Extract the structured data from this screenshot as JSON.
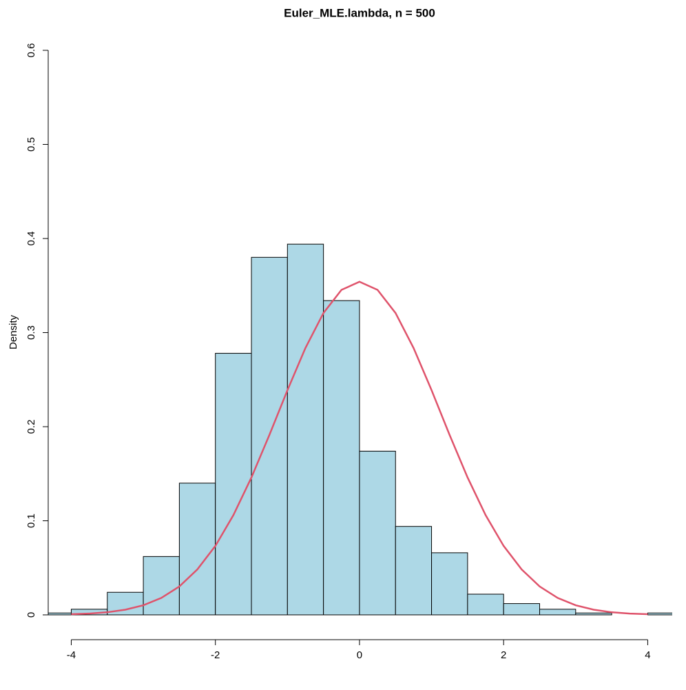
{
  "chart_data": {
    "type": "histogram",
    "title": "Euler_MLE.lambda, n = 500",
    "y_label": "Density",
    "bins": [
      -4.5,
      -4,
      -3.5,
      -3,
      -2.5,
      -2,
      -1.5,
      -1,
      -0.5,
      0,
      0.5,
      1,
      1.5,
      2,
      2.5,
      3,
      3.5,
      4,
      4.5
    ],
    "values": [
      0.002,
      0.006,
      0.024,
      0.062,
      0.14,
      0.278,
      0.38,
      0.394,
      0.334,
      0.174,
      0.094,
      0.066,
      0.022,
      0.012,
      0.006,
      0.002,
      0,
      0.002
    ],
    "color": "#add8e6",
    "curve": {
      "color": "#df536b",
      "x": [
        -4,
        -3.75,
        -3.5,
        -3.25,
        -3,
        -2.75,
        -2.5,
        -2.25,
        -2,
        -1.75,
        -1.5,
        -1.25,
        -1,
        -0.75,
        -0.5,
        -0.25,
        0,
        0.25,
        0.5,
        0.75,
        1,
        1.25,
        1.5,
        1.75,
        2,
        2.25,
        2.5,
        2.75,
        3,
        3.25,
        3.5,
        3.75,
        4
      ],
      "values": [
        0.0007,
        0.0014,
        0.0028,
        0.0055,
        0.0102,
        0.018,
        0.0302,
        0.0483,
        0.0733,
        0.106,
        0.146,
        0.1913,
        0.2388,
        0.2837,
        0.3208,
        0.3454,
        0.354,
        0.3454,
        0.3208,
        0.2837,
        0.2388,
        0.1913,
        0.146,
        0.106,
        0.0733,
        0.0483,
        0.0302,
        0.018,
        0.0102,
        0.0055,
        0.0028,
        0.0014,
        0.0007
      ]
    },
    "xlim": [
      -4.32,
      4.34
    ],
    "xticks": [
      -4,
      -2,
      0,
      2,
      4
    ],
    "ylim": [
      0,
      0.6
    ],
    "yticks": [
      0,
      0.1,
      0.2,
      0.3,
      0.4,
      0.5,
      0.6
    ]
  }
}
